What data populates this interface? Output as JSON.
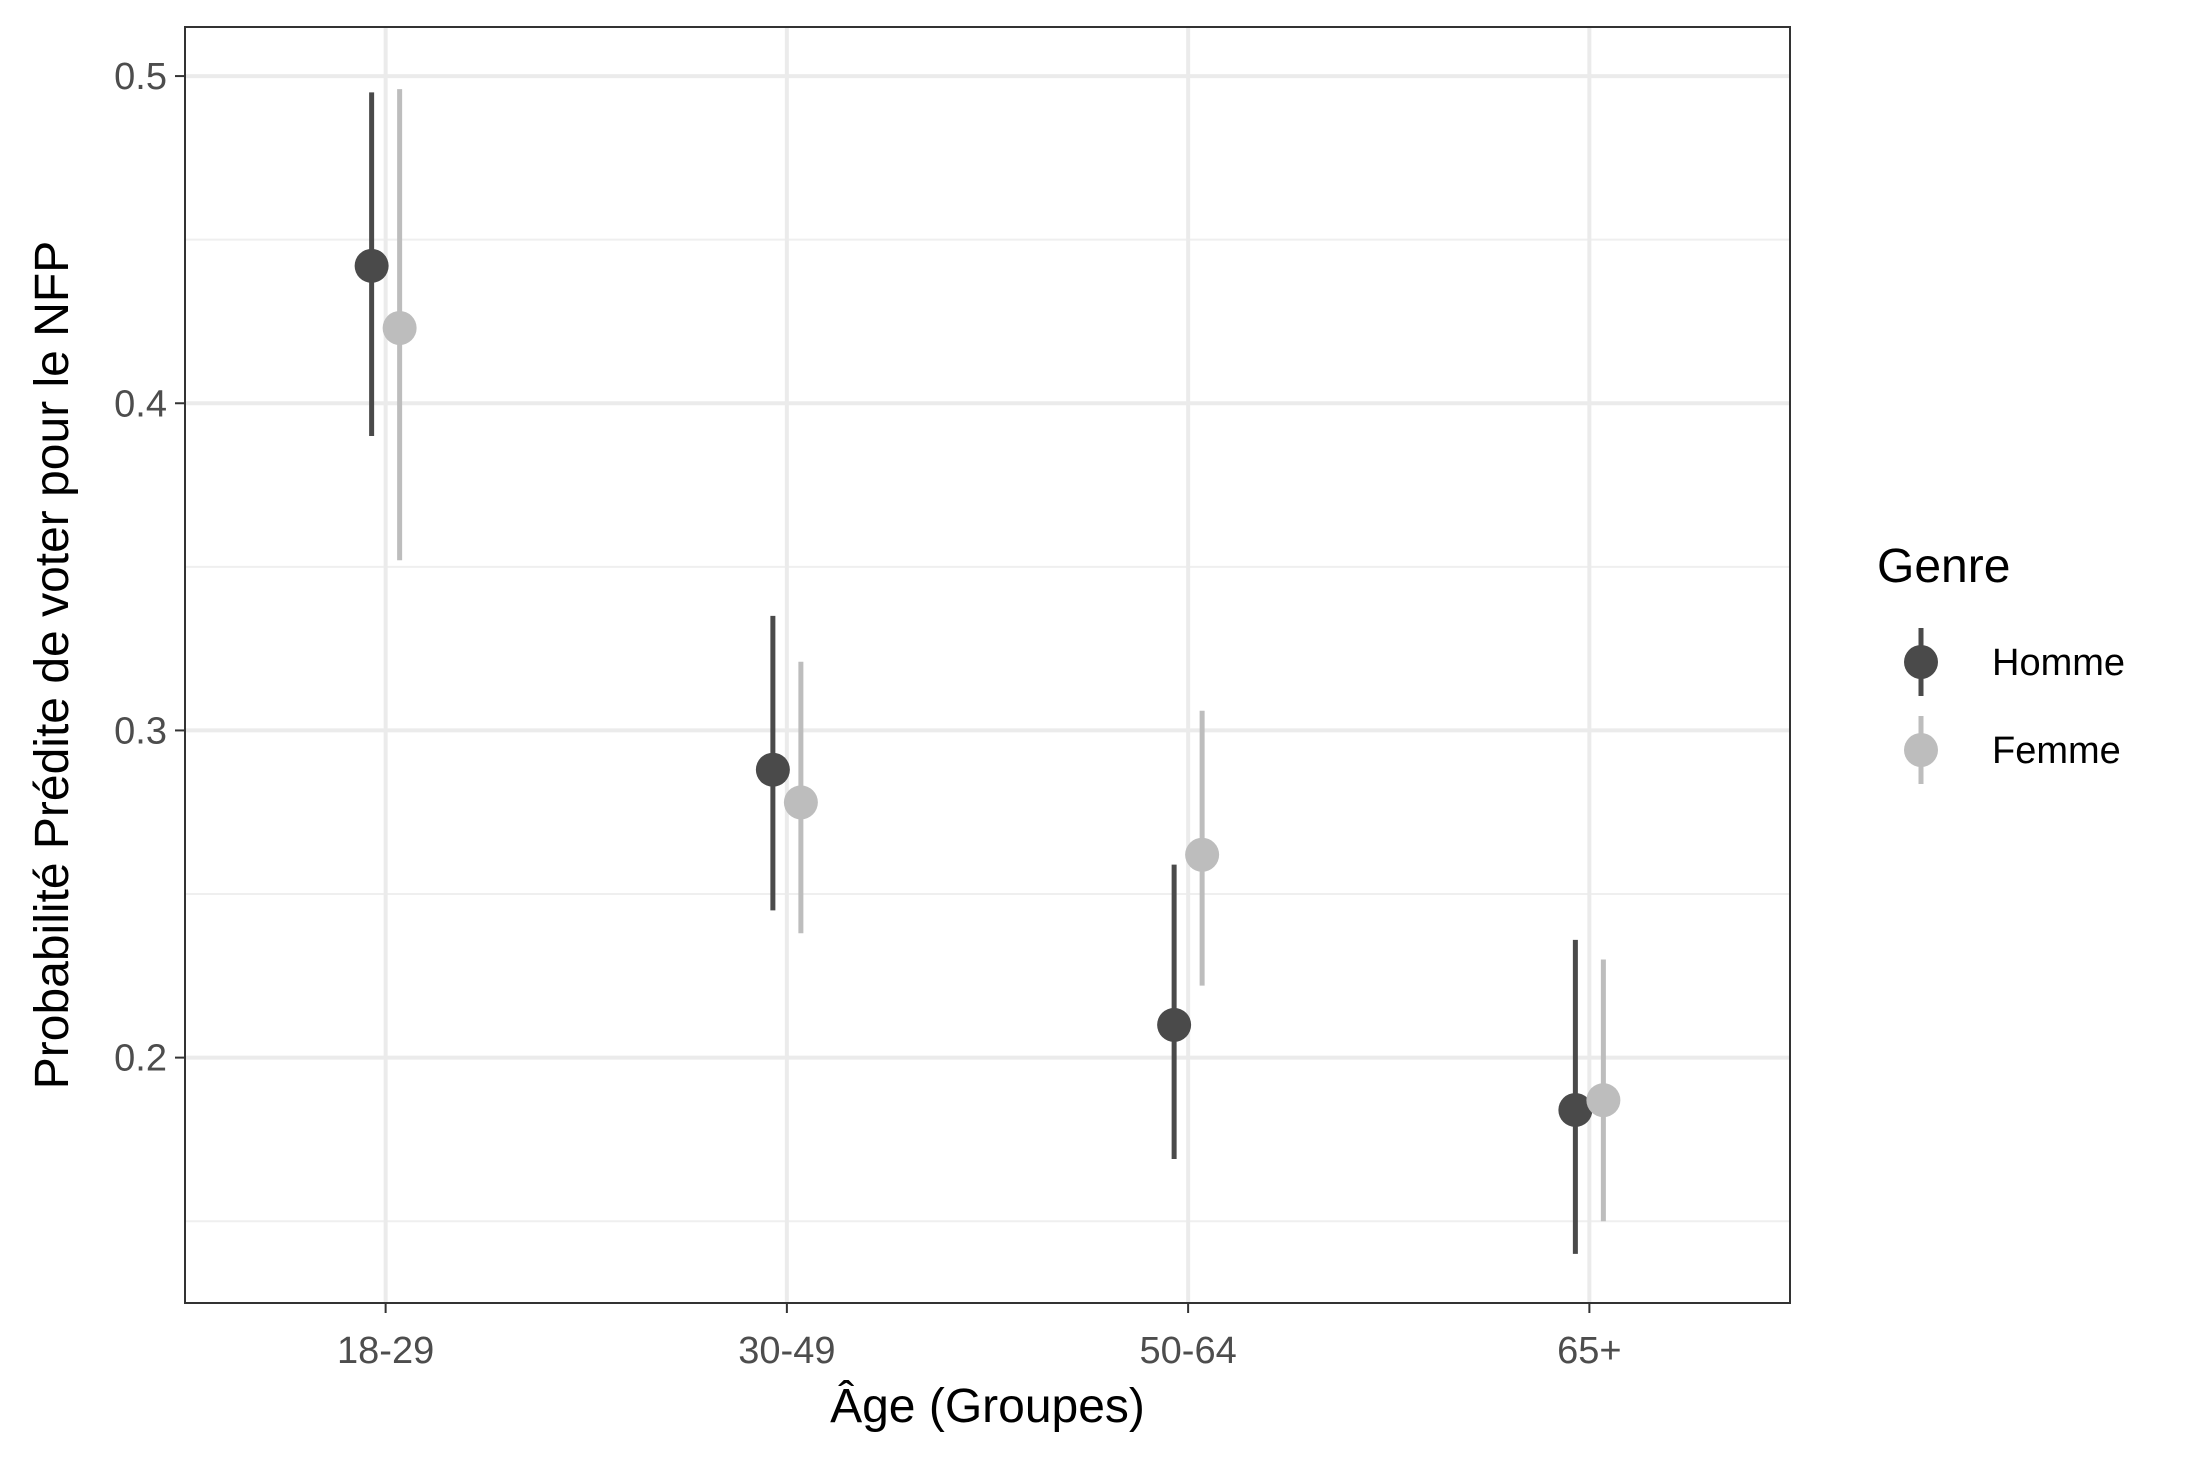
{
  "chart_data": {
    "type": "scatter",
    "subtype": "point-range",
    "title": "",
    "xlabel": "Âge (Groupes)",
    "ylabel": "Probabilité Prédite de voter pour le NFP",
    "categories": [
      "18-29",
      "30-49",
      "50-64",
      "65+"
    ],
    "ylim": [
      0.125,
      0.515
    ],
    "yticks": [
      0.2,
      0.3,
      0.4,
      0.5
    ],
    "ytick_labels": [
      "0.2",
      "0.3",
      "0.4",
      "0.5"
    ],
    "grid": true,
    "legend": {
      "title": "Genre",
      "placement": "right"
    },
    "series": [
      {
        "name": "Homme",
        "color": "#4a4a4a",
        "values": [
          0.442,
          0.288,
          0.21,
          0.184
        ],
        "lower": [
          0.39,
          0.245,
          0.169,
          0.14
        ],
        "upper": [
          0.495,
          0.335,
          0.259,
          0.236
        ]
      },
      {
        "name": "Femme",
        "color": "#bdbdbd",
        "values": [
          0.423,
          0.278,
          0.262,
          0.187
        ],
        "lower": [
          0.352,
          0.238,
          0.222,
          0.15
        ],
        "upper": [
          0.496,
          0.321,
          0.306,
          0.23
        ]
      }
    ]
  }
}
